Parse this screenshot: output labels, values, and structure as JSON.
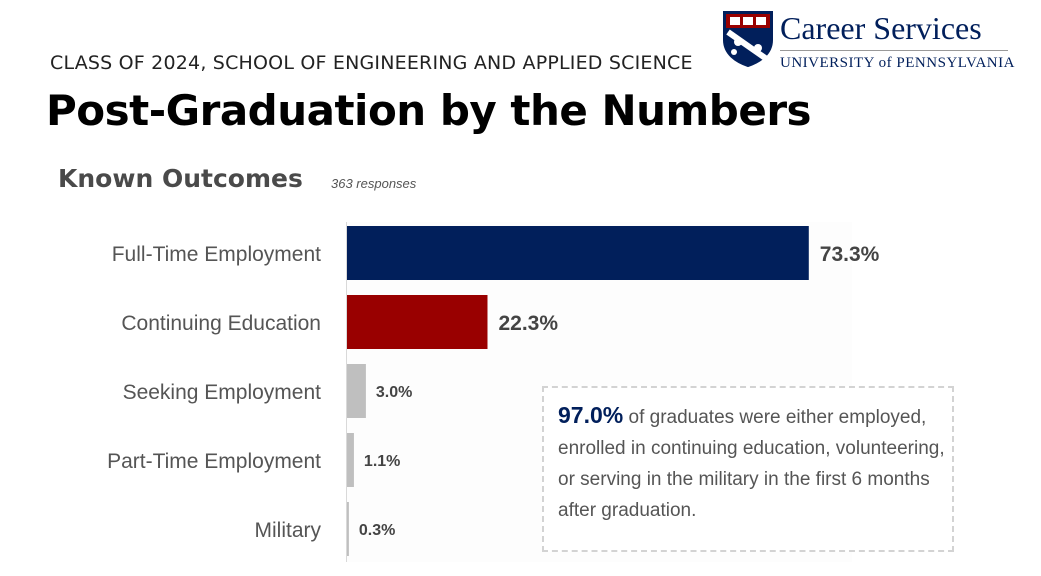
{
  "header": {
    "subtitle": "CLASS OF 2024, SCHOOL OF ENGINEERING AND APPLIED SCIENCE",
    "title": "Post-Graduation by the Numbers"
  },
  "logo": {
    "name": "Career Services",
    "university": "UNIVERSITY of PENNSYLVANIA"
  },
  "section": {
    "title": "Known Outcomes",
    "responses": "363 responses"
  },
  "colors": {
    "navy": "#011f5b",
    "red": "#990000",
    "gray": "#bfbfbf"
  },
  "chart_data": {
    "type": "bar",
    "orientation": "horizontal",
    "title": "Known Outcomes",
    "categories": [
      "Full-Time Employment",
      "Continuing Education",
      "Seeking Employment",
      "Part-Time Employment",
      "Military"
    ],
    "values": [
      73.3,
      22.3,
      3.0,
      1.1,
      0.3
    ],
    "value_labels": [
      "73.3%",
      "22.3%",
      "3.0%",
      "1.1%",
      "0.3%"
    ],
    "bar_colors": [
      "#011f5b",
      "#990000",
      "#bfbfbf",
      "#bfbfbf",
      "#bfbfbf"
    ],
    "xlim": [
      0,
      100
    ],
    "grid": false,
    "legend": "none"
  },
  "callout": {
    "highlight": "97.0%",
    "text": " of graduates were either employed, enrolled in continuing education, volunteering, or serving in the military in the first 6 months after graduation."
  }
}
